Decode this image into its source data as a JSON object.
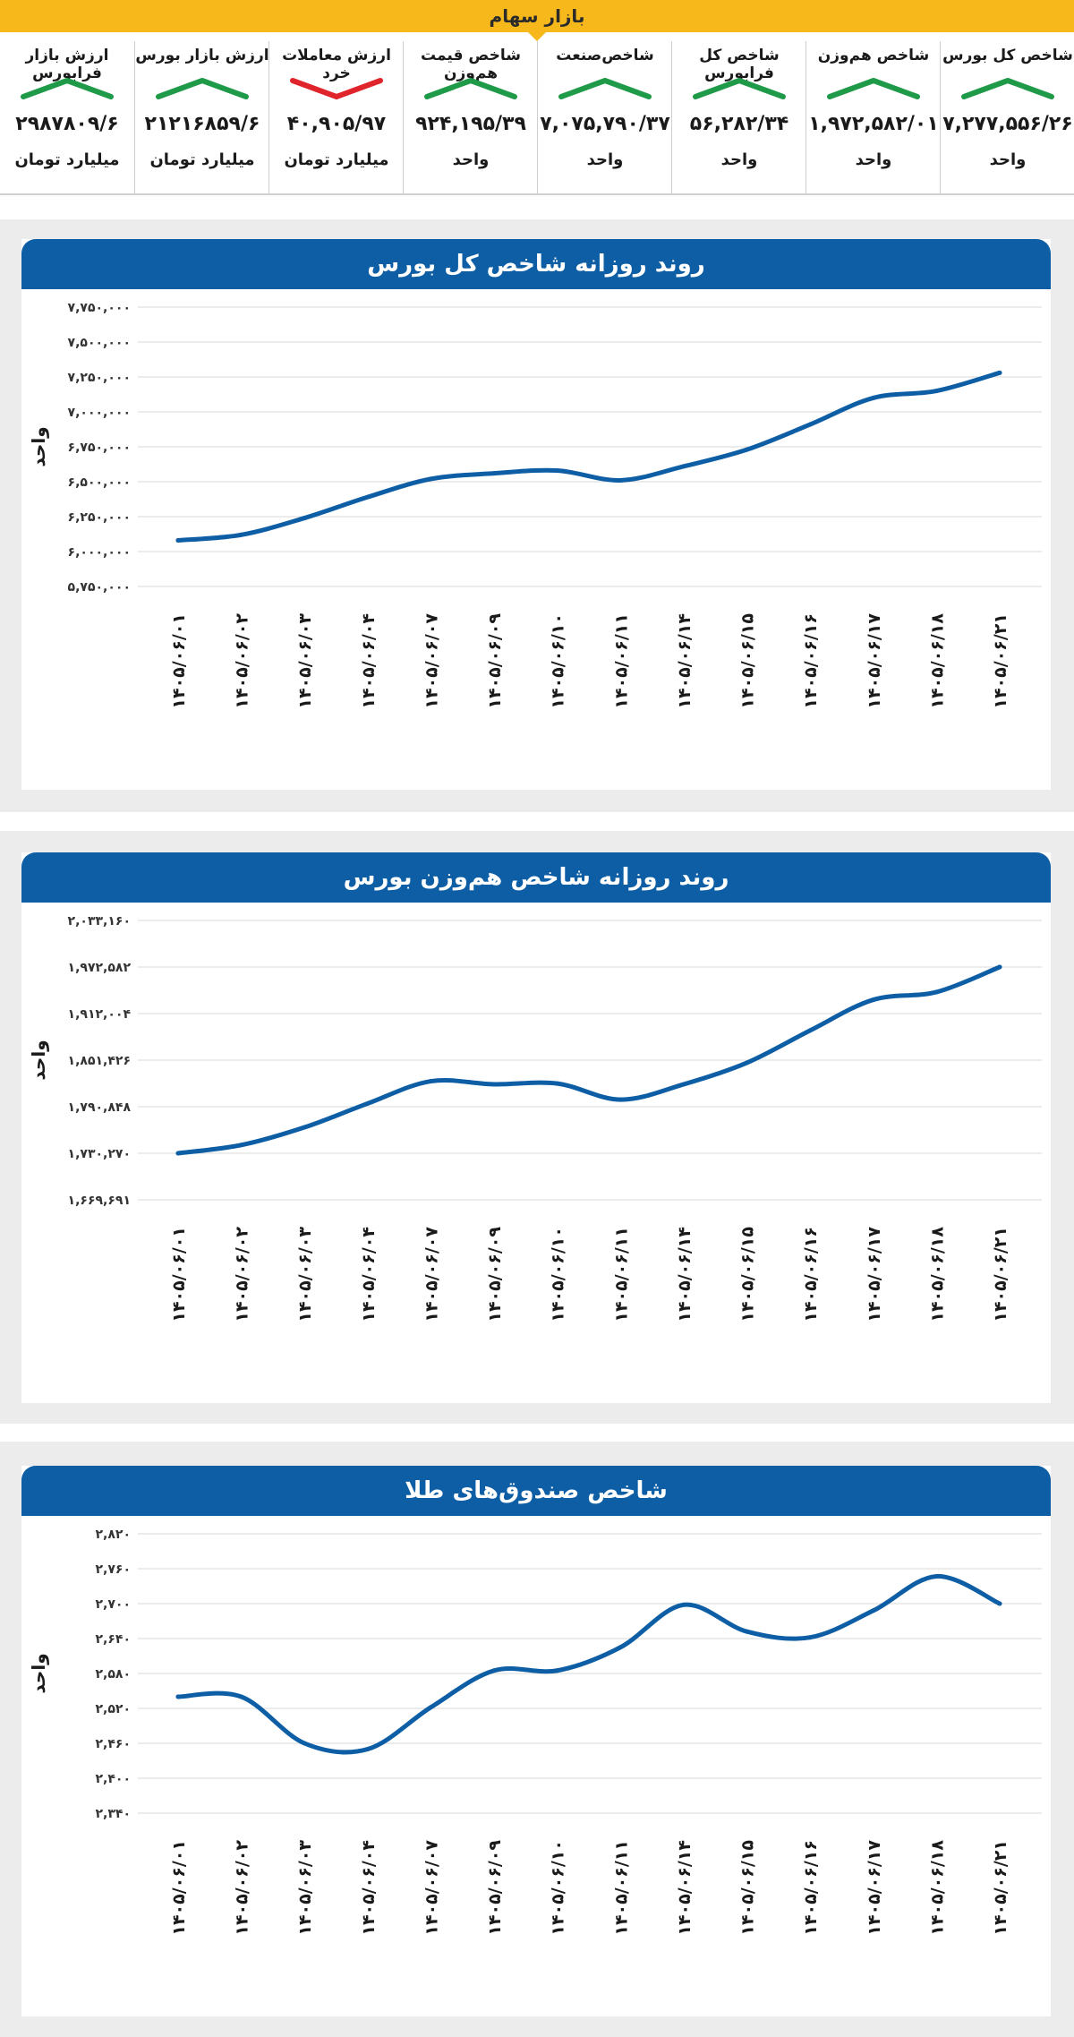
{
  "header": {
    "title": "بازار سهام"
  },
  "stats": [
    {
      "title": "شاخص کل بورس",
      "value": "۷,۲۷۷,۵۵۶/۲۶",
      "unit": "واحد",
      "trend": "up"
    },
    {
      "title": "شاخص هم‌وزن",
      "value": "۱,۹۷۲,۵۸۲/۰۱",
      "unit": "واحد",
      "trend": "up"
    },
    {
      "title": "شاخص کل فرابورس",
      "value": "۵۶,۲۸۲/۳۴",
      "unit": "واحد",
      "trend": "up"
    },
    {
      "title": "شاخص‌صنعت",
      "value": "۷,۰۷۵,۷۹۰/۳۷",
      "unit": "واحد",
      "trend": "up"
    },
    {
      "title": "شاخص قیمت هم‌وزن",
      "value": "۹۲۴,۱۹۵/۳۹",
      "unit": "واحد",
      "trend": "up"
    },
    {
      "title": "ارزش معاملات خرد",
      "value": "۴۰,۹۰۵/۹۷",
      "unit": "میلیارد تومان",
      "trend": "down"
    },
    {
      "title": "ارزش بازار بورس",
      "value": "۲۱۲۱۶۸۵۹/۶",
      "unit": "میلیارد تومان",
      "trend": "up"
    },
    {
      "title": "ارزش بازار فرابورس",
      "value": "۲۹۸۷۸۰۹/۶",
      "unit": "میلیارد تومان",
      "trend": "up"
    }
  ],
  "colors": {
    "header": "#f7b81c",
    "title_bar": "#0e5ea5",
    "line": "#0e5ea5",
    "up": "#1e9a48",
    "down": "#e0242b",
    "grid": "#d9d9d9",
    "panel": "#ececec"
  },
  "chart_data": [
    {
      "type": "line",
      "title": "روند روزانه شاخص کل بورس",
      "ylabel": "واحد",
      "ylim": [
        5750000,
        7750000
      ],
      "y_ticks": [
        "۵,۷۵۰,۰۰۰",
        "۶,۰۰۰,۰۰۰",
        "۶,۲۵۰,۰۰۰",
        "۶,۵۰۰,۰۰۰",
        "۶,۷۵۰,۰۰۰",
        "۷,۰۰۰,۰۰۰",
        "۷,۲۵۰,۰۰۰",
        "۷,۵۰۰,۰۰۰",
        "۷,۷۵۰,۰۰۰"
      ],
      "categories": [
        "۱۴۰۵/۰۶/۰۱",
        "۱۴۰۵/۰۶/۰۲",
        "۱۴۰۵/۰۶/۰۳",
        "۱۴۰۵/۰۶/۰۴",
        "۱۴۰۵/۰۶/۰۷",
        "۱۴۰۵/۰۶/۰۹",
        "۱۴۰۵/۰۶/۱۰",
        "۱۴۰۵/۰۶/۱۱",
        "۱۴۰۵/۰۶/۱۴",
        "۱۴۰۵/۰۶/۱۵",
        "۱۴۰۵/۰۶/۱۶",
        "۱۴۰۵/۰۶/۱۷",
        "۱۴۰۵/۰۶/۱۸",
        "۱۴۰۵/۰۶/۲۱"
      ],
      "values": [
        6080000,
        6120000,
        6240000,
        6390000,
        6520000,
        6560000,
        6580000,
        6510000,
        6610000,
        6730000,
        6910000,
        7100000,
        7150000,
        7280000
      ],
      "grid": true
    },
    {
      "type": "line",
      "title": "روند روزانه شاخص هم‌وزن بورس",
      "ylabel": "واحد",
      "ylim": [
        1669691,
        2033160
      ],
      "y_ticks": [
        "۱,۶۶۹,۶۹۱",
        "۱,۷۳۰,۲۷۰",
        "۱,۷۹۰,۸۴۸",
        "۱,۸۵۱,۴۲۶",
        "۱,۹۱۲,۰۰۴",
        "۱,۹۷۲,۵۸۲",
        "۲,۰۳۳,۱۶۰"
      ],
      "categories": [
        "۱۴۰۵/۰۶/۰۱",
        "۱۴۰۵/۰۶/۰۲",
        "۱۴۰۵/۰۶/۰۳",
        "۱۴۰۵/۰۶/۰۴",
        "۱۴۰۵/۰۶/۰۷",
        "۱۴۰۵/۰۶/۰۹",
        "۱۴۰۵/۰۶/۱۰",
        "۱۴۰۵/۰۶/۱۱",
        "۱۴۰۵/۰۶/۱۴",
        "۱۴۰۵/۰۶/۱۵",
        "۱۴۰۵/۰۶/۱۶",
        "۱۴۰۵/۰۶/۱۷",
        "۱۴۰۵/۰۶/۱۸",
        "۱۴۰۵/۰۶/۲۱"
      ],
      "values": [
        1730270,
        1741000,
        1764000,
        1795000,
        1824000,
        1820000,
        1821000,
        1800000,
        1820000,
        1848000,
        1890000,
        1930000,
        1940000,
        1972582
      ],
      "grid": true
    },
    {
      "type": "line",
      "title": "شاخص صندوق‌های طلا",
      "ylabel": "واحد",
      "ylim": [
        2340,
        2820
      ],
      "y_ticks": [
        "۲,۳۴۰",
        "۲,۴۰۰",
        "۲,۴۶۰",
        "۲,۵۲۰",
        "۲,۵۸۰",
        "۲,۶۴۰",
        "۲,۷۰۰",
        "۲,۷۶۰",
        "۲,۸۲۰"
      ],
      "categories": [
        "۱۴۰۵/۰۶/۰۱",
        "۱۴۰۵/۰۶/۰۲",
        "۱۴۰۵/۰۶/۰۳",
        "۱۴۰۵/۰۶/۰۴",
        "۱۴۰۵/۰۶/۰۷",
        "۱۴۰۵/۰۶/۰۹",
        "۱۴۰۵/۰۶/۱۰",
        "۱۴۰۵/۰۶/۱۱",
        "۱۴۰۵/۰۶/۱۴",
        "۱۴۰۵/۰۶/۱۵",
        "۱۴۰۵/۰۶/۱۶",
        "۱۴۰۵/۰۶/۱۷",
        "۱۴۰۵/۰۶/۱۸",
        "۱۴۰۵/۰۶/۲۱"
      ],
      "values": [
        2540,
        2540,
        2460,
        2450,
        2522,
        2585,
        2585,
        2625,
        2698,
        2652,
        2642,
        2688,
        2747,
        2700
      ],
      "grid": true
    }
  ]
}
